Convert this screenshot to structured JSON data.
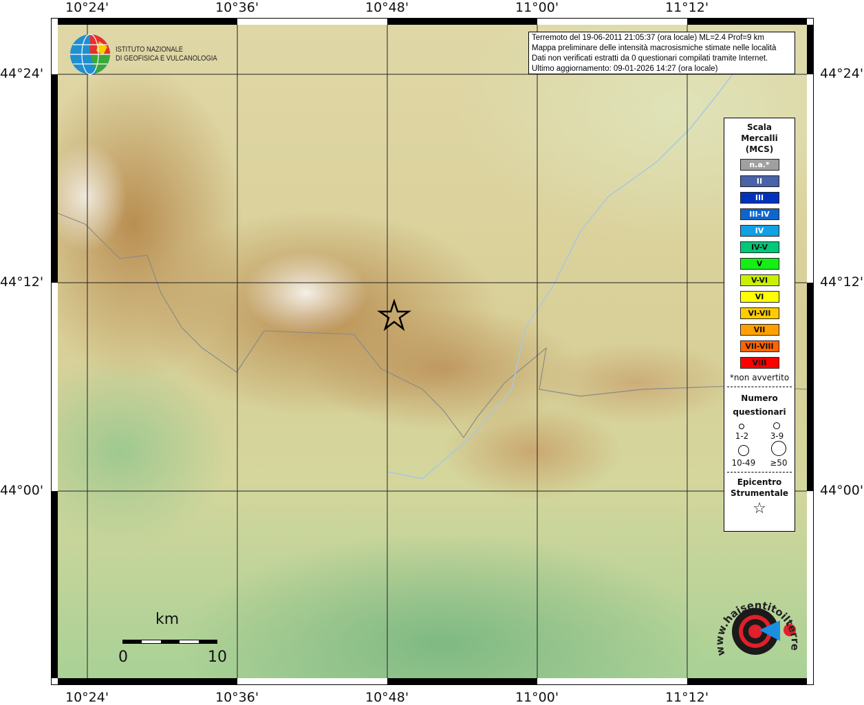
{
  "axes": {
    "lon_labels": [
      "10°24'",
      "10°36'",
      "10°48'",
      "11°00'",
      "11°12'"
    ],
    "lat_labels": [
      "44°24'",
      "44°12'",
      "44°00'"
    ]
  },
  "logo": {
    "line1": "ISTITUTO NAZIONALE",
    "line2": "DI GEOFISICA E VULCANOLOGIA"
  },
  "info": {
    "lines": [
      "Terremoto del 19-06-2011 21:05:37 (ora locale) ML=2.4 Prof=9 km",
      "Mappa preliminare delle intensità macrosismiche stimate nelle località",
      "Dati non verificati estratti da 0 questionari compilati tramite Internet.",
      "Ultimo aggiornamento: 09-01-2026 14:27 (ora locale)"
    ]
  },
  "legend": {
    "title": [
      "Scala",
      "Mercalli",
      "(MCS)"
    ],
    "scale": [
      {
        "label": "n.a.*",
        "color": "#a0a0a0",
        "text": "#ffffff"
      },
      {
        "label": "II",
        "color": "#4a62a8",
        "text": "#ffffff"
      },
      {
        "label": "III",
        "color": "#0033bb",
        "text": "#ffffff"
      },
      {
        "label": "III-IV",
        "color": "#0e66cc",
        "text": "#ffffff"
      },
      {
        "label": "IV",
        "color": "#0fa0e6",
        "text": "#ffffff"
      },
      {
        "label": "IV-V",
        "color": "#00c878",
        "text": "#111111"
      },
      {
        "label": "V",
        "color": "#14f014",
        "text": "#111111"
      },
      {
        "label": "V-VI",
        "color": "#c8f000",
        "text": "#111111"
      },
      {
        "label": "VI",
        "color": "#ffff00",
        "text": "#111111"
      },
      {
        "label": "VI-VII",
        "color": "#ffcc00",
        "text": "#111111"
      },
      {
        "label": "VII",
        "color": "#ffa000",
        "text": "#111111"
      },
      {
        "label": "VII-VIII",
        "color": "#ff6400",
        "text": "#111111"
      },
      {
        "label": "VIII",
        "color": "#ff0000",
        "text": "#111111"
      }
    ],
    "note": "*non avvertito",
    "count_title": [
      "Numero",
      "questionari"
    ],
    "counts": [
      "1-2",
      "3-9",
      "10-49",
      "≥50"
    ],
    "epicenter_title": [
      "Epicentro",
      "Strumentale"
    ]
  },
  "scalebar": {
    "unit": "km",
    "min": "0",
    "max": "10"
  },
  "badge": {
    "text": "www.haisentitoilterremoto.it"
  }
}
